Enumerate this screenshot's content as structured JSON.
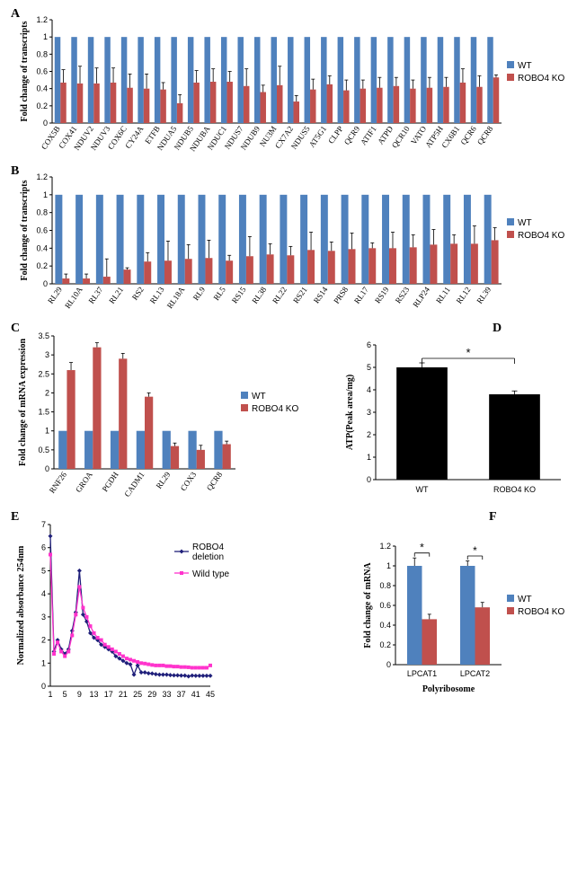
{
  "panelA": {
    "label": "A",
    "type": "bar",
    "ylabel": "Fold change of transcripts",
    "ylim": [
      0,
      1.2
    ],
    "ytick_step": 0.2,
    "bar_wt_color": "#4f81bd",
    "bar_ko_color": "#c0504d",
    "background_color": "#ffffff",
    "categories": [
      "COX5B",
      "COX41",
      "NDUV2",
      "NDUV3",
      "COX6C",
      "CY24A",
      "ETFB",
      "NDUA5",
      "NDUB5",
      "NDUBA",
      "NDUC1",
      "NDUS7",
      "NDUB9",
      "NU3M",
      "CX7A2",
      "NDUS5",
      "AT5G1",
      "CLPP",
      "QCR9",
      "ATIF1",
      "ATPD",
      "QCR10",
      "VATO",
      "ATP5H",
      "CX6B1",
      "QCR6",
      "QCR8"
    ],
    "wt_values": [
      1,
      1,
      1,
      1,
      1,
      1,
      1,
      1,
      1,
      1,
      1,
      1,
      1,
      1,
      1,
      1,
      1,
      1,
      1,
      1,
      1,
      1,
      1,
      1,
      1,
      1,
      1
    ],
    "ko_values": [
      0.47,
      0.46,
      0.46,
      0.47,
      0.41,
      0.4,
      0.39,
      0.23,
      0.47,
      0.48,
      0.48,
      0.43,
      0.36,
      0.44,
      0.25,
      0.39,
      0.45,
      0.38,
      0.4,
      0.41,
      0.43,
      0.4,
      0.41,
      0.42,
      0.47,
      0.42,
      0.53
    ],
    "ko_err": [
      0.15,
      0.2,
      0.18,
      0.17,
      0.16,
      0.17,
      0.08,
      0.1,
      0.14,
      0.15,
      0.12,
      0.2,
      0.08,
      0.22,
      0.07,
      0.12,
      0.1,
      0.12,
      0.1,
      0.12,
      0.1,
      0.1,
      0.12,
      0.11,
      0.16,
      0.13,
      0.03
    ],
    "legend": {
      "wt": "WT",
      "ko": "ROBO4 KO"
    }
  },
  "panelB": {
    "label": "B",
    "type": "bar",
    "ylabel": "Fold change of transcripts",
    "ylim": [
      0,
      1.2
    ],
    "ytick_step": 0.2,
    "bar_wt_color": "#4f81bd",
    "bar_ko_color": "#c0504d",
    "categories": [
      "RL29",
      "RL10A",
      "RL37",
      "RL21",
      "RS2",
      "RL13",
      "RL18A",
      "RL9",
      "RL5",
      "RS15",
      "RL38",
      "RL22",
      "RS21",
      "RS14",
      "PRS8",
      "RL17",
      "RS19",
      "RS23",
      "RLP24",
      "RL11",
      "RL12",
      "RL39"
    ],
    "wt_values": [
      1,
      1,
      1,
      1,
      1,
      1,
      1,
      1,
      1,
      1,
      1,
      1,
      1,
      1,
      1,
      1,
      1,
      1,
      1,
      1,
      1,
      1
    ],
    "ko_values": [
      0.06,
      0.06,
      0.08,
      0.16,
      0.25,
      0.26,
      0.28,
      0.29,
      0.26,
      0.31,
      0.33,
      0.32,
      0.38,
      0.37,
      0.39,
      0.4,
      0.4,
      0.41,
      0.44,
      0.45,
      0.45,
      0.49
    ],
    "ko_err": [
      0.05,
      0.05,
      0.2,
      0.02,
      0.1,
      0.22,
      0.16,
      0.2,
      0.06,
      0.22,
      0.12,
      0.1,
      0.2,
      0.1,
      0.18,
      0.06,
      0.18,
      0.14,
      0.17,
      0.1,
      0.2,
      0.14
    ],
    "legend": {
      "wt": "WT",
      "ko": "ROBO4 KO"
    }
  },
  "panelC": {
    "label": "C",
    "type": "bar",
    "ylabel": "Fold change of mRNA expression",
    "ylim": [
      0,
      3.5
    ],
    "ytick_step": 0.5,
    "bar_wt_color": "#4f81bd",
    "bar_ko_color": "#c0504d",
    "categories": [
      "RNF26",
      "GROA",
      "PGDH",
      "CADM1",
      "RL29",
      "COX3",
      "QCR8"
    ],
    "wt_values": [
      1,
      1,
      1,
      1,
      1,
      1,
      1
    ],
    "ko_values": [
      2.6,
      3.2,
      2.9,
      1.9,
      0.6,
      0.5,
      0.65
    ],
    "ko_err": [
      0.2,
      0.12,
      0.14,
      0.1,
      0.08,
      0.12,
      0.08
    ],
    "legend": {
      "wt": "WT",
      "ko": "ROBO4 KO"
    }
  },
  "panelD": {
    "label": "D",
    "type": "bar",
    "ylabel": "ATP(Peak area/mg)",
    "ylim": [
      0,
      6
    ],
    "ytick_step": 1,
    "bar_color": "#000000",
    "categories": [
      "WT",
      "ROBO4 KO"
    ],
    "values": [
      5.0,
      3.8
    ],
    "err": [
      0.2,
      0.15
    ],
    "sig_marker": "*"
  },
  "panelE": {
    "label": "E",
    "type": "line",
    "ylabel": "Normalized absorbance 254nm",
    "ylim": [
      0,
      7
    ],
    "ytick_step": 1,
    "x_ticks": [
      1,
      5,
      9,
      13,
      17,
      21,
      25,
      29,
      33,
      37,
      41,
      45
    ],
    "series": [
      {
        "name": "ROBO4 deletion",
        "color": "#1f1f7a",
        "marker": "diamond",
        "x": [
          1,
          2,
          3,
          4,
          5,
          6,
          7,
          8,
          9,
          10,
          11,
          12,
          13,
          14,
          15,
          16,
          17,
          18,
          19,
          20,
          21,
          22,
          23,
          24,
          25,
          26,
          27,
          28,
          29,
          30,
          31,
          32,
          33,
          34,
          35,
          36,
          37,
          38,
          39,
          40,
          41,
          42,
          43,
          44,
          45
        ],
        "y": [
          6.5,
          1.5,
          2.0,
          1.6,
          1.4,
          1.6,
          2.4,
          3.2,
          5.0,
          3.1,
          2.8,
          2.3,
          2.1,
          2.0,
          1.8,
          1.7,
          1.6,
          1.5,
          1.3,
          1.2,
          1.1,
          1.0,
          0.95,
          0.5,
          0.9,
          0.6,
          0.6,
          0.56,
          0.55,
          0.52,
          0.5,
          0.5,
          0.5,
          0.48,
          0.47,
          0.47,
          0.46,
          0.46,
          0.43,
          0.46,
          0.45,
          0.45,
          0.45,
          0.45,
          0.45
        ]
      },
      {
        "name": "Wild type",
        "color": "#ff33cc",
        "marker": "square",
        "x": [
          1,
          2,
          3,
          4,
          5,
          6,
          7,
          8,
          9,
          10,
          11,
          12,
          13,
          14,
          15,
          16,
          17,
          18,
          19,
          20,
          21,
          22,
          23,
          24,
          25,
          26,
          27,
          28,
          29,
          30,
          31,
          32,
          33,
          34,
          35,
          36,
          37,
          38,
          39,
          40,
          41,
          42,
          43,
          44,
          45
        ],
        "y": [
          5.7,
          1.4,
          1.9,
          1.5,
          1.3,
          1.5,
          2.2,
          3.1,
          4.3,
          3.4,
          3.0,
          2.6,
          2.3,
          2.1,
          2.0,
          1.8,
          1.7,
          1.6,
          1.5,
          1.4,
          1.3,
          1.2,
          1.15,
          1.1,
          1.05,
          1.0,
          0.98,
          0.95,
          0.92,
          0.9,
          0.9,
          0.9,
          0.87,
          0.87,
          0.85,
          0.85,
          0.83,
          0.83,
          0.82,
          0.8,
          0.8,
          0.8,
          0.8,
          0.8,
          0.9
        ]
      }
    ],
    "legend": {
      "s1": "ROBO4 deletion",
      "s2": "Wild type"
    }
  },
  "panelF": {
    "label": "F",
    "type": "bar",
    "ylabel": "Fold change of mRNA",
    "xlabel": "Polyribosome",
    "ylim": [
      0,
      1.2
    ],
    "ytick_step": 0.2,
    "bar_wt_color": "#4f81bd",
    "bar_ko_color": "#c0504d",
    "categories": [
      "LPCAT1",
      "LPCAT2"
    ],
    "wt_values": [
      1,
      1
    ],
    "ko_values": [
      0.46,
      0.58
    ],
    "wt_err": [
      0.08,
      0.05
    ],
    "ko_err": [
      0.05,
      0.05
    ],
    "sig_marker": "*",
    "legend": {
      "wt": "WT",
      "ko": "ROBO4 KO"
    }
  }
}
